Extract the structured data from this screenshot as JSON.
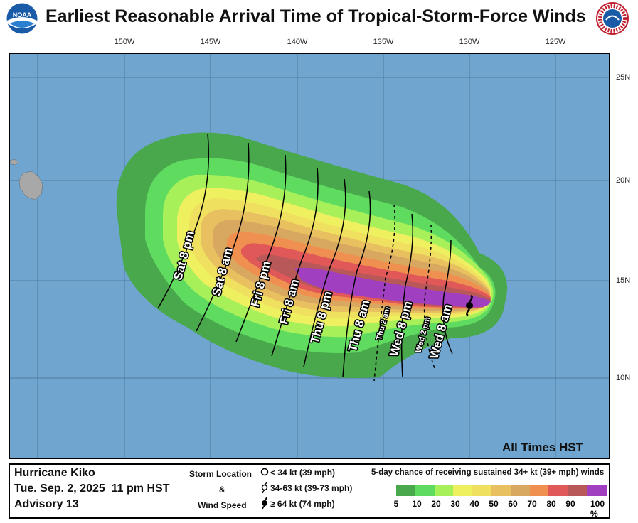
{
  "title": "Earliest Reasonable Arrival Time of Tropical-Storm-Force Winds",
  "logos": {
    "left": "NOAA",
    "right": "NATIONAL WEATHER SERVICE"
  },
  "longitude_labels": [
    "150W",
    "145W",
    "140W",
    "135W",
    "130W",
    "125W"
  ],
  "latitude_labels": [
    "25N",
    "20N",
    "15N",
    "10N"
  ],
  "arrival_time_labels": [
    "Sat 8 pm",
    "Sat 8 am",
    "Fri 8 pm",
    "Fri 8 am",
    "Thu 8 pm",
    "Thu 8 am",
    "Thu 2 am",
    "Wed 8 pm",
    "Wed 2 pm",
    "Wed 8 am"
  ],
  "all_times_label": "All Times HST",
  "storm": {
    "name": "Hurricane Kiko",
    "datetime": "Tue. Sep. 2, 2025  11 pm HST",
    "advisory": "Advisory 13"
  },
  "storm_legend": {
    "header1": "Storm Location",
    "header2": "&",
    "header3": "Wind Speed",
    "items": [
      "< 34 kt (39 mph)",
      "34-63 kt (39-73 mph)",
      "≥ 64 kt (74 mph)"
    ]
  },
  "probability_legend": {
    "title": "5-day chance of receiving sustained 34+ kt (39+ mph) winds",
    "ticks": [
      "5",
      "10",
      "20",
      "30",
      "40",
      "50",
      "60",
      "70",
      "80",
      "90",
      "100 %"
    ],
    "colors": [
      "#4aa84c",
      "#5fdc5f",
      "#a8f05a",
      "#eef060",
      "#f0e060",
      "#e8c060",
      "#d8a860",
      "#f09050",
      "#e05858",
      "#b85858",
      "#a040c0"
    ]
  }
}
